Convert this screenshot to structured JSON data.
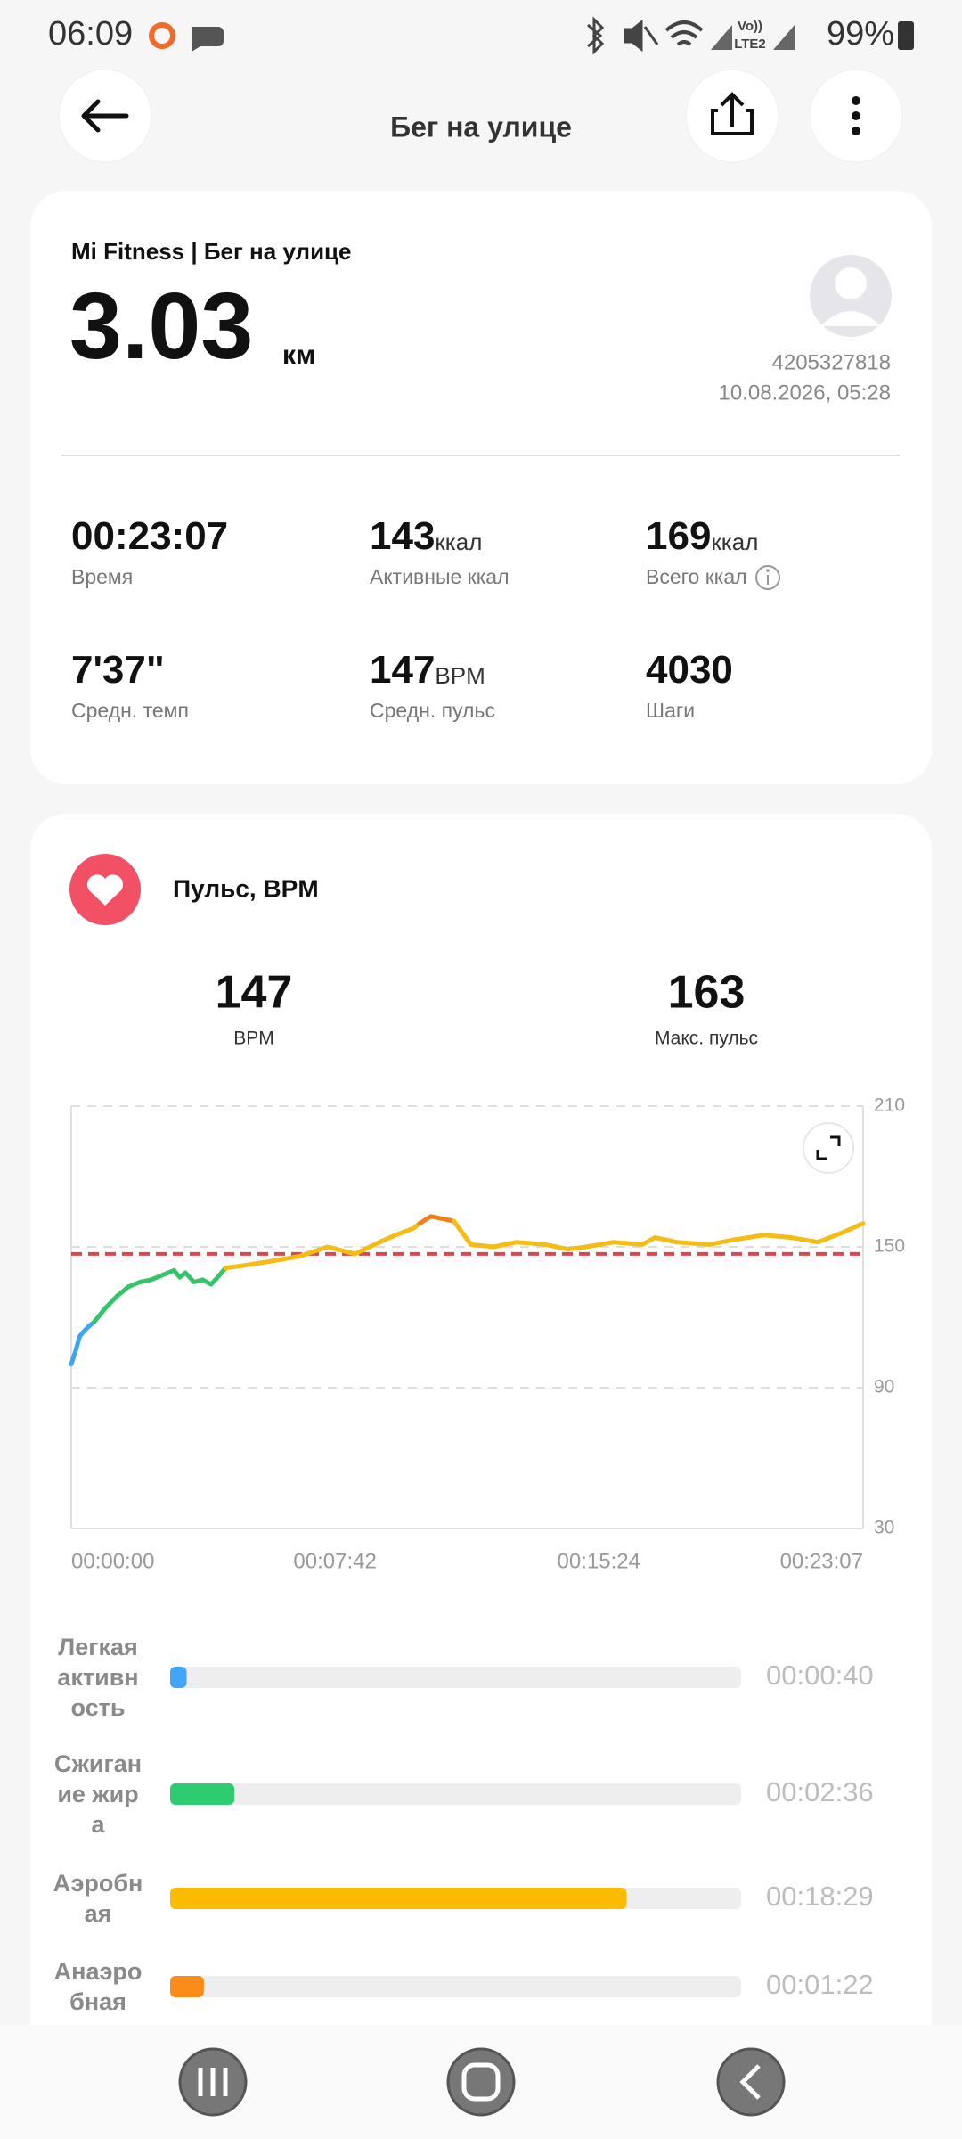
{
  "status_bar": {
    "time": "06:09",
    "volte": "Vo))",
    "lte": "LTE2",
    "battery": "99%"
  },
  "header": {
    "title": "Бег на улице"
  },
  "summary": {
    "source": "Mi Fitness | Бег на улице",
    "distance": "3.03",
    "distance_unit": "км",
    "user_id": "4205327818",
    "datetime": "10.08.2026, 05:28",
    "stats": [
      {
        "value": "00:23:07",
        "label": "Время"
      },
      {
        "value": "143",
        "unit": "ккал",
        "label": "Активные ккал"
      },
      {
        "value": "169",
        "unit": "ккал",
        "label": "Всего ккал"
      },
      {
        "value": "7'37\"",
        "label": "Средн. темп"
      },
      {
        "value": "147",
        "unit": "BPM",
        "label": "Средн. пульс"
      },
      {
        "value": "4030",
        "label": "Шаги"
      }
    ]
  },
  "heart": {
    "title": "Пульс, BPM",
    "avg": 147,
    "avg_label": "BPM",
    "max": 163,
    "max_label": "Макс. пульс"
  },
  "chart_data": {
    "type": "line",
    "xlim": [
      0,
      1387
    ],
    "xticks": [
      {
        "value": 0,
        "label": "00:00:00"
      },
      {
        "value": 462,
        "label": "00:07:42"
      },
      {
        "value": 924,
        "label": "00:15:24"
      },
      {
        "value": 1387,
        "label": "00:23:07"
      }
    ],
    "ylim": [
      30,
      210
    ],
    "yticks": [
      30,
      90,
      150,
      210
    ],
    "grid": true,
    "series": [
      {
        "color": "#3ea6f0",
        "x": [
          0,
          8,
          15,
          22,
          30,
          40
        ],
        "values": [
          100,
          106,
          112,
          114,
          116,
          118
        ]
      },
      {
        "color": "#35c46a",
        "x": [
          40,
          60,
          80,
          100,
          120,
          140,
          160,
          180,
          190,
          200,
          215,
          230,
          245,
          260,
          270
        ],
        "values": [
          118,
          124,
          129,
          133,
          135,
          136,
          138,
          140,
          137,
          139,
          135,
          136,
          134,
          138,
          141
        ]
      },
      {
        "color": "#f4bc14",
        "x": [
          270,
          300,
          353,
          400,
          449,
          497,
          540,
          568,
          600,
          610
        ],
        "values": [
          141,
          142,
          144,
          146,
          150,
          147,
          152,
          155,
          158,
          160
        ]
      },
      {
        "color": "#f0801c",
        "x": [
          610,
          630,
          650,
          670
        ],
        "values": [
          160,
          163,
          162,
          161
        ]
      },
      {
        "color": "#f4bc14",
        "x": [
          670,
          700,
          740,
          780,
          831,
          870,
          902,
          950,
          1000,
          1022,
          1060,
          1117,
          1160,
          1213,
          1260,
          1308,
          1350,
          1387
        ],
        "values": [
          161,
          151,
          150,
          152,
          151,
          149,
          150,
          152,
          151,
          154,
          152,
          151,
          153,
          155,
          154,
          152,
          156,
          160
        ]
      }
    ]
  },
  "zones": {
    "names": [
      "Легкая активность",
      "Сжигание жира",
      "Аэробная",
      "Анаэробная"
    ],
    "values": [
      40,
      156,
      1109,
      82
    ],
    "value_labels": [
      "00:00:40",
      "00:02:36",
      "00:18:29",
      "00:01:22"
    ],
    "colors": [
      "#42a5f5",
      "#2ecc71",
      "#fbbb00",
      "#fb8c1a"
    ]
  }
}
